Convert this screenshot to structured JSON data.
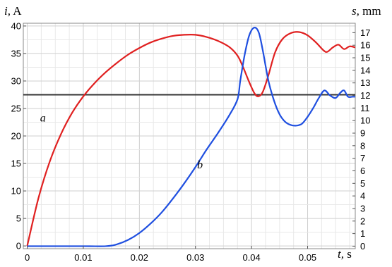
{
  "chart_data": {
    "type": "line",
    "left_axis": {
      "label_symbol": "i,",
      "label_unit": "A",
      "ylim": [
        -0.5,
        40.5
      ],
      "ticks": [
        0,
        5,
        10,
        15,
        20,
        25,
        30,
        35,
        40
      ]
    },
    "right_axis": {
      "label_symbol": "s,",
      "label_unit": "mm",
      "ylim": [
        -0.2,
        17.75
      ],
      "ticks": [
        0,
        1,
        2,
        3,
        4,
        5,
        6,
        7,
        8,
        9,
        10,
        11,
        12,
        13,
        14,
        15,
        16,
        17
      ]
    },
    "x_axis": {
      "label_symbol": "t,",
      "label_unit": "s",
      "xlim": [
        -0.0007,
        0.0585
      ],
      "ticks": [
        0,
        0.01,
        0.02,
        0.03,
        0.04,
        0.05
      ],
      "tick_labels": [
        "0",
        "0.01",
        "0.02",
        "0.03",
        "0.04",
        "0.05"
      ]
    },
    "grid": true,
    "series": [
      {
        "name": "a",
        "axis": "left",
        "color": "#e02020",
        "label_at": [
          0.0028,
          22.6
        ],
        "points": [
          [
            0,
            0
          ],
          [
            0.002,
            8.7
          ],
          [
            0.004,
            15.3
          ],
          [
            0.006,
            20.3
          ],
          [
            0.008,
            24.2
          ],
          [
            0.01,
            27.2
          ],
          [
            0.012,
            29.6
          ],
          [
            0.014,
            31.6
          ],
          [
            0.016,
            33.3
          ],
          [
            0.018,
            34.8
          ],
          [
            0.02,
            36.0
          ],
          [
            0.022,
            37.0
          ],
          [
            0.024,
            37.7
          ],
          [
            0.026,
            38.2
          ],
          [
            0.028,
            38.4
          ],
          [
            0.03,
            38.4
          ],
          [
            0.032,
            38.0
          ],
          [
            0.034,
            37.3
          ],
          [
            0.036,
            36.2
          ],
          [
            0.0375,
            34.6
          ],
          [
            0.0385,
            32.5
          ],
          [
            0.0395,
            30.0
          ],
          [
            0.0405,
            27.8
          ],
          [
            0.0412,
            27.2
          ],
          [
            0.042,
            28.0
          ],
          [
            0.043,
            31.0
          ],
          [
            0.0442,
            35.2
          ],
          [
            0.0455,
            37.6
          ],
          [
            0.047,
            38.7
          ],
          [
            0.0485,
            38.9
          ],
          [
            0.05,
            38.3
          ],
          [
            0.0515,
            37.0
          ],
          [
            0.0528,
            35.6
          ],
          [
            0.0535,
            35.3
          ],
          [
            0.0545,
            36.1
          ],
          [
            0.0555,
            36.6
          ],
          [
            0.0565,
            35.8
          ],
          [
            0.0575,
            36.3
          ],
          [
            0.0585,
            36.1
          ]
        ]
      },
      {
        "name": "b",
        "axis": "right",
        "color": "#1f4fe0",
        "label_at": [
          0.0308,
          6.2
        ],
        "points": [
          [
            0,
            0
          ],
          [
            0.01,
            0
          ],
          [
            0.014,
            0
          ],
          [
            0.016,
            0.15
          ],
          [
            0.018,
            0.5
          ],
          [
            0.02,
            1.05
          ],
          [
            0.022,
            1.8
          ],
          [
            0.024,
            2.7
          ],
          [
            0.026,
            3.8
          ],
          [
            0.028,
            5.0
          ],
          [
            0.03,
            6.3
          ],
          [
            0.032,
            7.7
          ],
          [
            0.034,
            9.0
          ],
          [
            0.036,
            10.4
          ],
          [
            0.0375,
            11.7
          ],
          [
            0.038,
            13.2
          ],
          [
            0.0388,
            15.3
          ],
          [
            0.0396,
            16.8
          ],
          [
            0.0405,
            17.4
          ],
          [
            0.0413,
            17.0
          ],
          [
            0.042,
            15.6
          ],
          [
            0.043,
            13.2
          ],
          [
            0.044,
            11.6
          ],
          [
            0.045,
            10.5
          ],
          [
            0.046,
            9.9
          ],
          [
            0.047,
            9.65
          ],
          [
            0.048,
            9.6
          ],
          [
            0.049,
            9.75
          ],
          [
            0.05,
            10.3
          ],
          [
            0.051,
            11.0
          ],
          [
            0.052,
            11.8
          ],
          [
            0.053,
            12.4
          ],
          [
            0.054,
            12.0
          ],
          [
            0.055,
            11.8
          ],
          [
            0.0558,
            12.2
          ],
          [
            0.0565,
            12.4
          ],
          [
            0.0572,
            11.9
          ],
          [
            0.058,
            11.9
          ],
          [
            0.0585,
            11.9
          ]
        ]
      }
    ],
    "reference_line": {
      "axis": "left",
      "value": 27.5,
      "color": "#333333"
    }
  }
}
